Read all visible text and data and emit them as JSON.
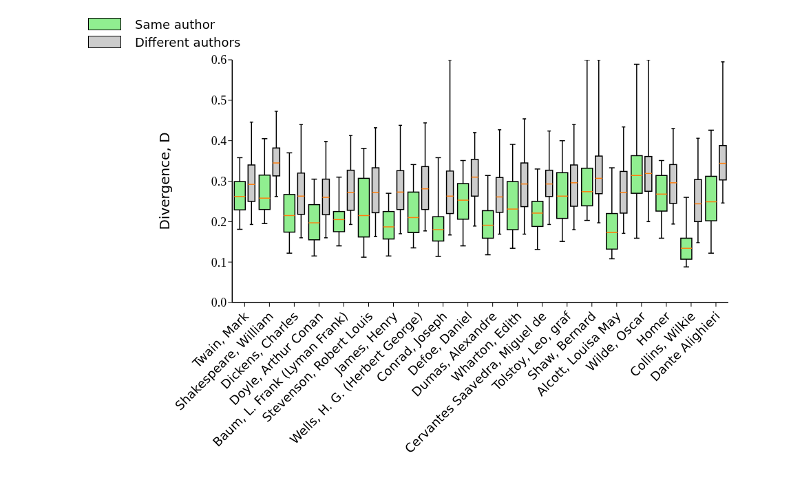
{
  "chart_data": {
    "type": "box",
    "ylabel": "Divergence, D",
    "legend": "top left",
    "categories": [
      "Twain, Mark",
      "Shakespeare, William",
      "Dickens, Charles",
      "Doyle, Arthur Conan",
      "Baum, L. Frank (Lyman Frank)",
      "Stevenson, Robert Louis",
      "James, Henry",
      "Wells, H. G. (Herbert George)",
      "Conrad, Joseph",
      "Defoe, Daniel",
      "Dumas, Alexandre",
      "Wharton, Edith",
      "Cervantes Saavedra, Miguel de",
      "Tolstoy, Leo, graf",
      "Shaw, Bernard",
      "Alcott, Louisa May",
      "Wilde, Oscar",
      "Homer",
      "Collins, Wilkie",
      "Dante Alighieri"
    ],
    "ylim": [
      0,
      0.6
    ],
    "yticks": [
      {
        "value": 0,
        "label": "0.0"
      },
      0.1,
      0.2,
      0.3,
      0.4,
      0.5,
      0.6
    ],
    "series": [
      {
        "name": "Same author",
        "color": "#90ee90",
        "boxes": [
          {
            "low": 0.181,
            "q1": 0.229,
            "median": 0.262,
            "q3": 0.299,
            "high": 0.358
          },
          {
            "low": 0.195,
            "q1": 0.23,
            "median": 0.258,
            "q3": 0.315,
            "high": 0.405
          },
          {
            "low": 0.122,
            "q1": 0.174,
            "median": 0.215,
            "q3": 0.267,
            "high": 0.37
          },
          {
            "low": 0.115,
            "q1": 0.155,
            "median": 0.197,
            "q3": 0.242,
            "high": 0.305
          },
          {
            "low": 0.14,
            "q1": 0.175,
            "median": 0.205,
            "q3": 0.225,
            "high": 0.31
          },
          {
            "low": 0.112,
            "q1": 0.162,
            "median": 0.215,
            "q3": 0.307,
            "high": 0.381
          },
          {
            "low": 0.115,
            "q1": 0.157,
            "median": 0.187,
            "q3": 0.225,
            "high": 0.27
          },
          {
            "low": 0.135,
            "q1": 0.173,
            "median": 0.21,
            "q3": 0.273,
            "high": 0.341
          },
          {
            "low": 0.114,
            "q1": 0.152,
            "median": 0.18,
            "q3": 0.212,
            "high": 0.358
          },
          {
            "low": 0.14,
            "q1": 0.206,
            "median": 0.253,
            "q3": 0.294,
            "high": 0.351
          },
          {
            "low": 0.118,
            "q1": 0.159,
            "median": 0.191,
            "q3": 0.227,
            "high": 0.314
          },
          {
            "low": 0.134,
            "q1": 0.18,
            "median": 0.231,
            "q3": 0.299,
            "high": 0.391
          },
          {
            "low": 0.131,
            "q1": 0.188,
            "median": 0.221,
            "q3": 0.25,
            "high": 0.33
          },
          {
            "low": 0.151,
            "q1": 0.208,
            "median": 0.263,
            "q3": 0.321,
            "high": 0.4
          },
          {
            "low": 0.203,
            "q1": 0.239,
            "median": 0.274,
            "q3": 0.332,
            "high": 0.6
          },
          {
            "low": 0.108,
            "q1": 0.132,
            "median": 0.173,
            "q3": 0.22,
            "high": 0.333
          },
          {
            "low": 0.159,
            "q1": 0.27,
            "median": 0.314,
            "q3": 0.363,
            "high": 0.589
          },
          {
            "low": 0.159,
            "q1": 0.226,
            "median": 0.268,
            "q3": 0.314,
            "high": 0.351
          },
          {
            "low": 0.088,
            "q1": 0.107,
            "median": 0.134,
            "q3": 0.159,
            "high": 0.26
          },
          {
            "low": 0.122,
            "q1": 0.202,
            "median": 0.249,
            "q3": 0.312,
            "high": 0.426
          }
        ]
      },
      {
        "name": "Different authors",
        "color": "#cccccc",
        "boxes": [
          {
            "low": 0.193,
            "q1": 0.25,
            "median": 0.292,
            "q3": 0.34,
            "high": 0.446
          },
          {
            "low": 0.262,
            "q1": 0.313,
            "median": 0.345,
            "q3": 0.382,
            "high": 0.473
          },
          {
            "low": 0.16,
            "q1": 0.218,
            "median": 0.263,
            "q3": 0.32,
            "high": 0.44
          },
          {
            "low": 0.16,
            "q1": 0.217,
            "median": 0.26,
            "q3": 0.305,
            "high": 0.398
          },
          {
            "low": 0.193,
            "q1": 0.228,
            "median": 0.272,
            "q3": 0.327,
            "high": 0.413
          },
          {
            "low": 0.163,
            "q1": 0.222,
            "median": 0.272,
            "q3": 0.333,
            "high": 0.432
          },
          {
            "low": 0.17,
            "q1": 0.23,
            "median": 0.273,
            "q3": 0.326,
            "high": 0.438
          },
          {
            "low": 0.177,
            "q1": 0.23,
            "median": 0.281,
            "q3": 0.336,
            "high": 0.444
          },
          {
            "low": 0.167,
            "q1": 0.22,
            "median": 0.263,
            "q3": 0.325,
            "high": 0.6
          },
          {
            "low": 0.189,
            "q1": 0.263,
            "median": 0.31,
            "q3": 0.354,
            "high": 0.42
          },
          {
            "low": 0.169,
            "q1": 0.223,
            "median": 0.261,
            "q3": 0.309,
            "high": 0.427
          },
          {
            "low": 0.169,
            "q1": 0.237,
            "median": 0.293,
            "q3": 0.345,
            "high": 0.454
          },
          {
            "low": 0.193,
            "q1": 0.262,
            "median": 0.293,
            "q3": 0.327,
            "high": 0.424
          },
          {
            "low": 0.18,
            "q1": 0.238,
            "median": 0.296,
            "q3": 0.34,
            "high": 0.44
          },
          {
            "low": 0.197,
            "q1": 0.269,
            "median": 0.307,
            "q3": 0.362,
            "high": 0.6
          },
          {
            "low": 0.171,
            "q1": 0.221,
            "median": 0.272,
            "q3": 0.324,
            "high": 0.434
          },
          {
            "low": 0.2,
            "q1": 0.275,
            "median": 0.319,
            "q3": 0.361,
            "high": 0.6
          },
          {
            "low": 0.194,
            "q1": 0.245,
            "median": 0.296,
            "q3": 0.341,
            "high": 0.43
          },
          {
            "low": 0.148,
            "q1": 0.2,
            "median": 0.244,
            "q3": 0.304,
            "high": 0.406
          },
          {
            "low": 0.246,
            "q1": 0.303,
            "median": 0.344,
            "q3": 0.388,
            "high": 0.595
          }
        ]
      }
    ]
  }
}
